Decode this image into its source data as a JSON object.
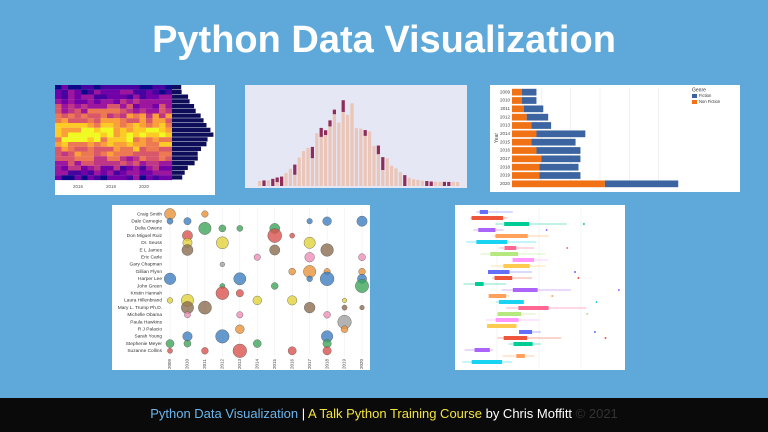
{
  "header": {
    "title": "Python Data Visualization"
  },
  "thumbnails": {
    "heatmap": {
      "x_labels": [
        "2016",
        "2018",
        "2020"
      ]
    },
    "stacked_bar": {
      "type": "bar",
      "y_label": "Year",
      "legend_title": "Genre",
      "categories": [
        "2009",
        "2010",
        "2011",
        "2012",
        "2013",
        "2014",
        "2015",
        "2016",
        "2017",
        "2018",
        "2019",
        "2020"
      ],
      "series": [
        {
          "name": "Fiction",
          "color": "#3b64a0",
          "values": [
            15,
            15,
            20,
            22,
            20,
            50,
            45,
            45,
            40,
            40,
            42,
            75
          ]
        },
        {
          "name": "Non Fiction",
          "color": "#f07214",
          "values": [
            10,
            10,
            12,
            15,
            20,
            25,
            20,
            25,
            30,
            28,
            28,
            95
          ]
        }
      ],
      "xlim": [
        0,
        180
      ]
    },
    "dot_plot": {
      "names": [
        "Craig Smith",
        "Dale Carnegie",
        "Delia Owens",
        "Don Miguel Ruiz",
        "Dr. Seuss",
        "E L James",
        "Eric Carle",
        "Gary Chapman",
        "Gillian Flynn",
        "Harper Lee",
        "John Green",
        "Kristin Hannah",
        "Laura Hillenbrand",
        "Mary L. Trump Ph.D.",
        "Michelle Obama",
        "Paula Hawkins",
        "R J Palacio",
        "Sarah Young",
        "Stephenie Meyer",
        "Suzanne Collins"
      ],
      "years": [
        "2009",
        "2010",
        "2011",
        "2012",
        "2013",
        "2014",
        "2015",
        "2016",
        "2017",
        "2018",
        "2019",
        "2020"
      ]
    }
  },
  "footer": {
    "course": "Python Data Visualization",
    "separator": "|",
    "subtitle": "A Talk Python Training Course",
    "author": "by Chris Moffitt",
    "copyright": "© 2021"
  }
}
